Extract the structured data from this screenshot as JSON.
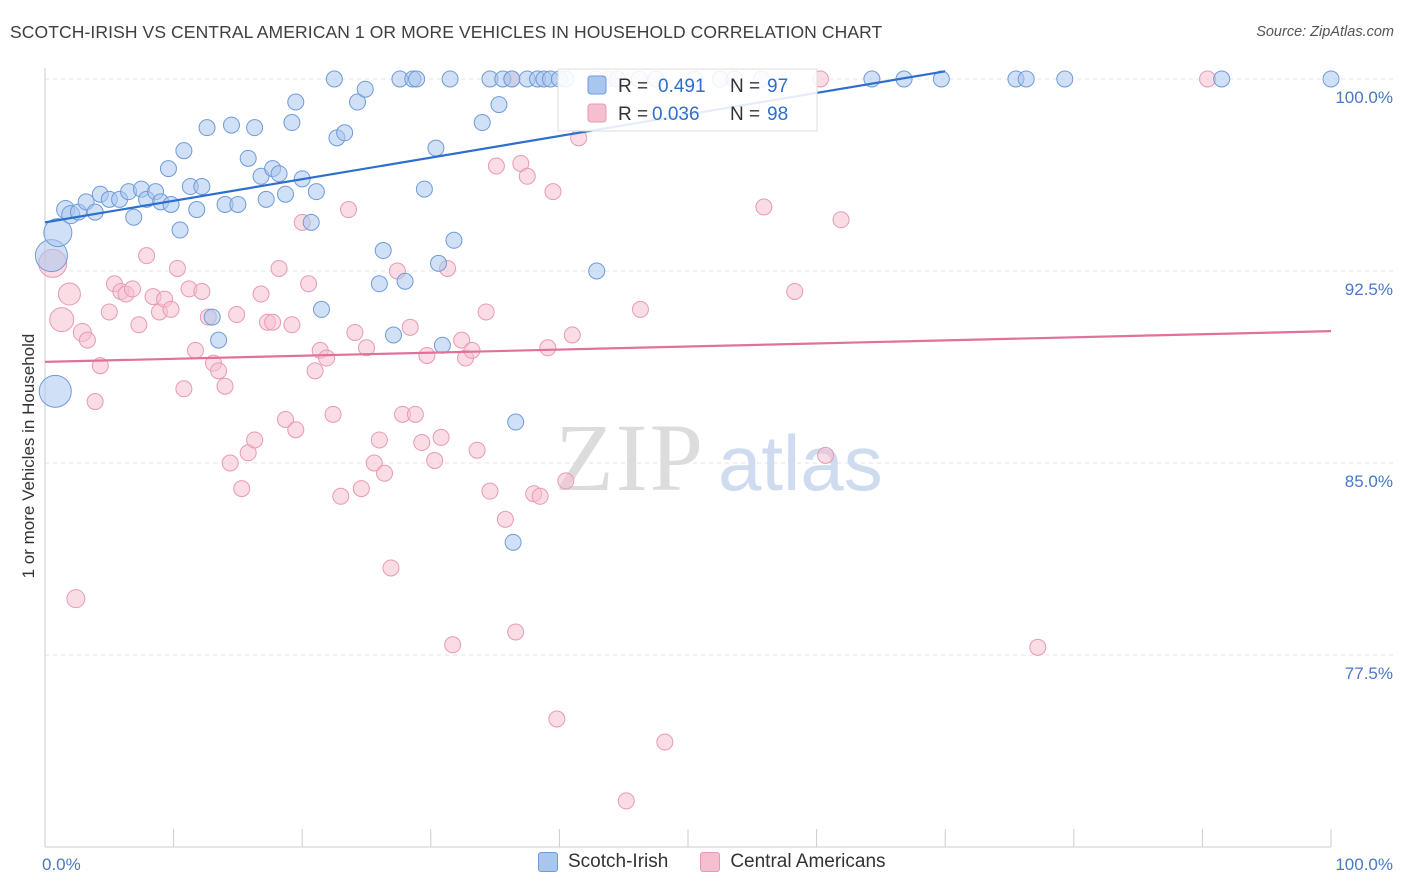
{
  "title": "SCOTCH-IRISH VS CENTRAL AMERICAN 1 OR MORE VEHICLES IN HOUSEHOLD CORRELATION CHART",
  "source": "Source: ZipAtlas.com",
  "watermark": {
    "zip": "ZIP",
    "atlas": "atlas"
  },
  "colors": {
    "blue_fill": "#a9c6ee",
    "blue_stroke": "#6f9bd8",
    "blue_line": "#2e6fcc",
    "pink_fill": "#f6bfd0",
    "pink_stroke": "#e79ab4",
    "pink_line": "#e0719a",
    "tick_text": "#4a77c7",
    "grid": "#e3e3e3"
  },
  "legend": {
    "r_label": "R =",
    "n_label": "N =",
    "series": [
      {
        "r": "0.491",
        "n": "97"
      },
      {
        "r": "0.036",
        "n": "98"
      }
    ]
  },
  "bottom_legend": [
    "Scotch-Irish",
    "Central Americans"
  ],
  "chart_data": {
    "type": "scatter",
    "title": "SCOTCH-IRISH VS CENTRAL AMERICAN 1 OR MORE VEHICLES IN HOUSEHOLD CORRELATION CHART",
    "xlabel": "",
    "ylabel": "1 or more Vehicles in Household",
    "x_tick_labels": [
      "0.0%",
      "100.0%"
    ],
    "y_tick_labels": [
      "100.0%",
      "92.5%",
      "85.0%",
      "77.5%"
    ],
    "y_ticks": [
      100.0,
      92.5,
      85.0,
      77.5
    ],
    "xlim": [
      0,
      100
    ],
    "ylim": [
      71.0,
      100.7
    ],
    "grid": true,
    "legend_position": "top-center",
    "series": [
      {
        "name": "Scotch-Irish",
        "color": "#a9c6ee",
        "trend": {
          "x": [
            0,
            70
          ],
          "y": [
            94.4,
            100.3
          ]
        },
        "points": [
          {
            "x": 0.5,
            "y": 93.1,
            "s": 16
          },
          {
            "x": 1.0,
            "y": 94.0,
            "s": 14
          },
          {
            "x": 0.8,
            "y": 87.8,
            "s": 16
          },
          {
            "x": 1.6,
            "y": 94.9,
            "s": 9
          },
          {
            "x": 2.0,
            "y": 94.7,
            "s": 9
          },
          {
            "x": 2.6,
            "y": 94.8,
            "s": 8
          },
          {
            "x": 3.2,
            "y": 95.2,
            "s": 8
          },
          {
            "x": 3.9,
            "y": 94.8,
            "s": 8
          },
          {
            "x": 4.3,
            "y": 95.5,
            "s": 8
          },
          {
            "x": 5.0,
            "y": 95.3,
            "s": 8
          },
          {
            "x": 5.8,
            "y": 95.3,
            "s": 8
          },
          {
            "x": 6.5,
            "y": 95.6,
            "s": 8
          },
          {
            "x": 6.9,
            "y": 94.6,
            "s": 8
          },
          {
            "x": 7.5,
            "y": 95.7,
            "s": 8
          },
          {
            "x": 7.9,
            "y": 95.3,
            "s": 8
          },
          {
            "x": 8.6,
            "y": 95.6,
            "s": 8
          },
          {
            "x": 9.0,
            "y": 95.2,
            "s": 8
          },
          {
            "x": 9.6,
            "y": 96.5,
            "s": 8
          },
          {
            "x": 9.8,
            "y": 95.1,
            "s": 8
          },
          {
            "x": 10.5,
            "y": 94.1,
            "s": 8
          },
          {
            "x": 10.8,
            "y": 97.2,
            "s": 8
          },
          {
            "x": 11.3,
            "y": 95.8,
            "s": 8
          },
          {
            "x": 11.8,
            "y": 94.9,
            "s": 8
          },
          {
            "x": 12.2,
            "y": 95.8,
            "s": 8
          },
          {
            "x": 12.6,
            "y": 98.1,
            "s": 8
          },
          {
            "x": 13.0,
            "y": 90.7,
            "s": 8
          },
          {
            "x": 13.5,
            "y": 89.8,
            "s": 8
          },
          {
            "x": 14.0,
            "y": 95.1,
            "s": 8
          },
          {
            "x": 14.5,
            "y": 98.2,
            "s": 8
          },
          {
            "x": 15.0,
            "y": 95.1,
            "s": 8
          },
          {
            "x": 15.8,
            "y": 96.9,
            "s": 8
          },
          {
            "x": 16.3,
            "y": 98.1,
            "s": 8
          },
          {
            "x": 16.8,
            "y": 96.2,
            "s": 8
          },
          {
            "x": 17.2,
            "y": 95.3,
            "s": 8
          },
          {
            "x": 17.7,
            "y": 96.5,
            "s": 8
          },
          {
            "x": 18.2,
            "y": 96.3,
            "s": 8
          },
          {
            "x": 18.7,
            "y": 95.5,
            "s": 8
          },
          {
            "x": 19.2,
            "y": 98.3,
            "s": 8
          },
          {
            "x": 19.5,
            "y": 99.1,
            "s": 8
          },
          {
            "x": 20.0,
            "y": 96.1,
            "s": 8
          },
          {
            "x": 20.7,
            "y": 94.4,
            "s": 8
          },
          {
            "x": 21.1,
            "y": 95.6,
            "s": 8
          },
          {
            "x": 21.5,
            "y": 91.0,
            "s": 8
          },
          {
            "x": 22.5,
            "y": 100.0,
            "s": 8
          },
          {
            "x": 22.7,
            "y": 97.7,
            "s": 8
          },
          {
            "x": 23.3,
            "y": 97.9,
            "s": 8
          },
          {
            "x": 24.3,
            "y": 99.1,
            "s": 8
          },
          {
            "x": 24.9,
            "y": 99.6,
            "s": 8
          },
          {
            "x": 26.0,
            "y": 92.0,
            "s": 8
          },
          {
            "x": 26.3,
            "y": 93.3,
            "s": 8
          },
          {
            "x": 27.1,
            "y": 90.0,
            "s": 8
          },
          {
            "x": 27.6,
            "y": 100.0,
            "s": 8
          },
          {
            "x": 28.0,
            "y": 92.1,
            "s": 8
          },
          {
            "x": 28.6,
            "y": 100.0,
            "s": 8
          },
          {
            "x": 28.9,
            "y": 100.0,
            "s": 8
          },
          {
            "x": 29.5,
            "y": 95.7,
            "s": 8
          },
          {
            "x": 30.4,
            "y": 97.3,
            "s": 8
          },
          {
            "x": 30.6,
            "y": 92.8,
            "s": 8
          },
          {
            "x": 30.9,
            "y": 89.6,
            "s": 8
          },
          {
            "x": 31.5,
            "y": 100.0,
            "s": 8
          },
          {
            "x": 31.8,
            "y": 93.7,
            "s": 8
          },
          {
            "x": 34.0,
            "y": 98.3,
            "s": 8
          },
          {
            "x": 34.6,
            "y": 100.0,
            "s": 8
          },
          {
            "x": 35.3,
            "y": 99.0,
            "s": 8
          },
          {
            "x": 35.6,
            "y": 100.0,
            "s": 8
          },
          {
            "x": 36.3,
            "y": 100.0,
            "s": 8
          },
          {
            "x": 36.6,
            "y": 86.6,
            "s": 8
          },
          {
            "x": 36.4,
            "y": 81.9,
            "s": 8
          },
          {
            "x": 37.5,
            "y": 100.0,
            "s": 8
          },
          {
            "x": 38.3,
            "y": 100.0,
            "s": 8
          },
          {
            "x": 38.8,
            "y": 100.0,
            "s": 8
          },
          {
            "x": 39.3,
            "y": 100.0,
            "s": 8
          },
          {
            "x": 40.0,
            "y": 100.0,
            "s": 8
          },
          {
            "x": 40.5,
            "y": 100.0,
            "s": 8
          },
          {
            "x": 42.9,
            "y": 92.5,
            "s": 8
          },
          {
            "x": 44.5,
            "y": 100.0,
            "s": 8
          },
          {
            "x": 46.2,
            "y": 100.0,
            "s": 8
          },
          {
            "x": 47.5,
            "y": 100.0,
            "s": 8
          },
          {
            "x": 50.5,
            "y": 100.0,
            "s": 8
          },
          {
            "x": 52.5,
            "y": 100.0,
            "s": 8
          },
          {
            "x": 53.6,
            "y": 100.0,
            "s": 8
          },
          {
            "x": 55.7,
            "y": 100.0,
            "s": 8
          },
          {
            "x": 64.3,
            "y": 100.0,
            "s": 8
          },
          {
            "x": 66.8,
            "y": 100.0,
            "s": 8
          },
          {
            "x": 69.7,
            "y": 100.0,
            "s": 8
          },
          {
            "x": 75.5,
            "y": 100.0,
            "s": 8
          },
          {
            "x": 76.3,
            "y": 100.0,
            "s": 8
          },
          {
            "x": 79.3,
            "y": 100.0,
            "s": 8
          },
          {
            "x": 91.5,
            "y": 100.0,
            "s": 8
          },
          {
            "x": 100.0,
            "y": 100.0,
            "s": 8
          }
        ]
      },
      {
        "name": "Central Americans",
        "color": "#f6bfd0",
        "trend": {
          "x": [
            0,
            100
          ],
          "y": [
            88.95,
            90.15
          ]
        },
        "points": [
          {
            "x": 0.6,
            "y": 92.8,
            "s": 14
          },
          {
            "x": 1.3,
            "y": 90.6,
            "s": 12
          },
          {
            "x": 1.9,
            "y": 91.6,
            "s": 11
          },
          {
            "x": 2.9,
            "y": 90.1,
            "s": 9
          },
          {
            "x": 3.3,
            "y": 89.8,
            "s": 8
          },
          {
            "x": 3.9,
            "y": 87.4,
            "s": 8
          },
          {
            "x": 4.3,
            "y": 88.8,
            "s": 8
          },
          {
            "x": 2.4,
            "y": 79.7,
            "s": 9
          },
          {
            "x": 5.0,
            "y": 90.9,
            "s": 8
          },
          {
            "x": 5.4,
            "y": 92.0,
            "s": 8
          },
          {
            "x": 5.9,
            "y": 91.7,
            "s": 8
          },
          {
            "x": 6.3,
            "y": 91.6,
            "s": 8
          },
          {
            "x": 6.8,
            "y": 91.8,
            "s": 8
          },
          {
            "x": 7.3,
            "y": 90.4,
            "s": 8
          },
          {
            "x": 7.9,
            "y": 93.1,
            "s": 8
          },
          {
            "x": 8.4,
            "y": 91.5,
            "s": 8
          },
          {
            "x": 8.9,
            "y": 90.9,
            "s": 8
          },
          {
            "x": 9.3,
            "y": 91.4,
            "s": 8
          },
          {
            "x": 9.8,
            "y": 91.0,
            "s": 8
          },
          {
            "x": 10.3,
            "y": 92.6,
            "s": 8
          },
          {
            "x": 10.8,
            "y": 87.9,
            "s": 8
          },
          {
            "x": 11.2,
            "y": 91.8,
            "s": 8
          },
          {
            "x": 11.7,
            "y": 89.4,
            "s": 8
          },
          {
            "x": 12.2,
            "y": 91.7,
            "s": 8
          },
          {
            "x": 12.7,
            "y": 90.7,
            "s": 8
          },
          {
            "x": 13.1,
            "y": 88.9,
            "s": 8
          },
          {
            "x": 13.5,
            "y": 88.6,
            "s": 8
          },
          {
            "x": 14.0,
            "y": 88.0,
            "s": 8
          },
          {
            "x": 14.4,
            "y": 85.0,
            "s": 8
          },
          {
            "x": 14.9,
            "y": 90.8,
            "s": 8
          },
          {
            "x": 15.3,
            "y": 84.0,
            "s": 8
          },
          {
            "x": 15.8,
            "y": 85.4,
            "s": 8
          },
          {
            "x": 16.3,
            "y": 85.9,
            "s": 8
          },
          {
            "x": 16.8,
            "y": 91.6,
            "s": 8
          },
          {
            "x": 17.3,
            "y": 90.5,
            "s": 8
          },
          {
            "x": 17.7,
            "y": 90.5,
            "s": 8
          },
          {
            "x": 18.2,
            "y": 92.6,
            "s": 8
          },
          {
            "x": 18.7,
            "y": 86.7,
            "s": 8
          },
          {
            "x": 19.2,
            "y": 90.4,
            "s": 8
          },
          {
            "x": 19.5,
            "y": 86.3,
            "s": 8
          },
          {
            "x": 20.0,
            "y": 94.4,
            "s": 8
          },
          {
            "x": 20.5,
            "y": 92.0,
            "s": 8
          },
          {
            "x": 21.0,
            "y": 88.6,
            "s": 8
          },
          {
            "x": 21.4,
            "y": 89.4,
            "s": 8
          },
          {
            "x": 21.9,
            "y": 89.1,
            "s": 8
          },
          {
            "x": 22.4,
            "y": 86.9,
            "s": 8
          },
          {
            "x": 23.0,
            "y": 83.7,
            "s": 8
          },
          {
            "x": 23.6,
            "y": 94.9,
            "s": 8
          },
          {
            "x": 24.1,
            "y": 90.1,
            "s": 8
          },
          {
            "x": 24.6,
            "y": 84.0,
            "s": 8
          },
          {
            "x": 25.0,
            "y": 89.5,
            "s": 8
          },
          {
            "x": 25.6,
            "y": 85.0,
            "s": 8
          },
          {
            "x": 26.0,
            "y": 85.9,
            "s": 8
          },
          {
            "x": 26.4,
            "y": 84.6,
            "s": 8
          },
          {
            "x": 26.9,
            "y": 80.9,
            "s": 8
          },
          {
            "x": 27.4,
            "y": 92.5,
            "s": 8
          },
          {
            "x": 27.8,
            "y": 86.9,
            "s": 8
          },
          {
            "x": 28.4,
            "y": 90.3,
            "s": 8
          },
          {
            "x": 28.8,
            "y": 86.9,
            "s": 8
          },
          {
            "x": 29.3,
            "y": 85.8,
            "s": 8
          },
          {
            "x": 29.7,
            "y": 89.2,
            "s": 8
          },
          {
            "x": 30.3,
            "y": 85.1,
            "s": 8
          },
          {
            "x": 30.8,
            "y": 86.0,
            "s": 8
          },
          {
            "x": 31.3,
            "y": 92.6,
            "s": 8
          },
          {
            "x": 31.7,
            "y": 77.9,
            "s": 8
          },
          {
            "x": 32.4,
            "y": 89.8,
            "s": 8
          },
          {
            "x": 32.7,
            "y": 89.1,
            "s": 8
          },
          {
            "x": 33.2,
            "y": 89.4,
            "s": 8
          },
          {
            "x": 33.6,
            "y": 85.5,
            "s": 8
          },
          {
            "x": 34.3,
            "y": 90.9,
            "s": 8
          },
          {
            "x": 34.6,
            "y": 83.9,
            "s": 8
          },
          {
            "x": 35.1,
            "y": 96.6,
            "s": 8
          },
          {
            "x": 35.8,
            "y": 82.8,
            "s": 8
          },
          {
            "x": 36.3,
            "y": 100.0,
            "s": 8
          },
          {
            "x": 36.6,
            "y": 78.4,
            "s": 8
          },
          {
            "x": 37.0,
            "y": 96.7,
            "s": 8
          },
          {
            "x": 37.5,
            "y": 96.2,
            "s": 8
          },
          {
            "x": 38.0,
            "y": 83.8,
            "s": 8
          },
          {
            "x": 38.5,
            "y": 83.7,
            "s": 8
          },
          {
            "x": 39.1,
            "y": 89.5,
            "s": 8
          },
          {
            "x": 39.5,
            "y": 95.6,
            "s": 8
          },
          {
            "x": 39.8,
            "y": 75.0,
            "s": 8
          },
          {
            "x": 40.5,
            "y": 84.3,
            "s": 8
          },
          {
            "x": 41.0,
            "y": 90.0,
            "s": 8
          },
          {
            "x": 41.5,
            "y": 97.7,
            "s": 8
          },
          {
            "x": 42.8,
            "y": 100.0,
            "s": 8
          },
          {
            "x": 43.8,
            "y": 100.0,
            "s": 8
          },
          {
            "x": 45.2,
            "y": 71.8,
            "s": 8
          },
          {
            "x": 46.3,
            "y": 91.0,
            "s": 8
          },
          {
            "x": 48.2,
            "y": 74.1,
            "s": 8
          },
          {
            "x": 55.9,
            "y": 95.0,
            "s": 8
          },
          {
            "x": 58.3,
            "y": 91.7,
            "s": 8
          },
          {
            "x": 60.3,
            "y": 100.0,
            "s": 8
          },
          {
            "x": 60.7,
            "y": 85.3,
            "s": 8
          },
          {
            "x": 61.9,
            "y": 94.5,
            "s": 8
          },
          {
            "x": 77.2,
            "y": 77.8,
            "s": 8
          },
          {
            "x": 90.4,
            "y": 100.0,
            "s": 8
          }
        ]
      }
    ]
  }
}
